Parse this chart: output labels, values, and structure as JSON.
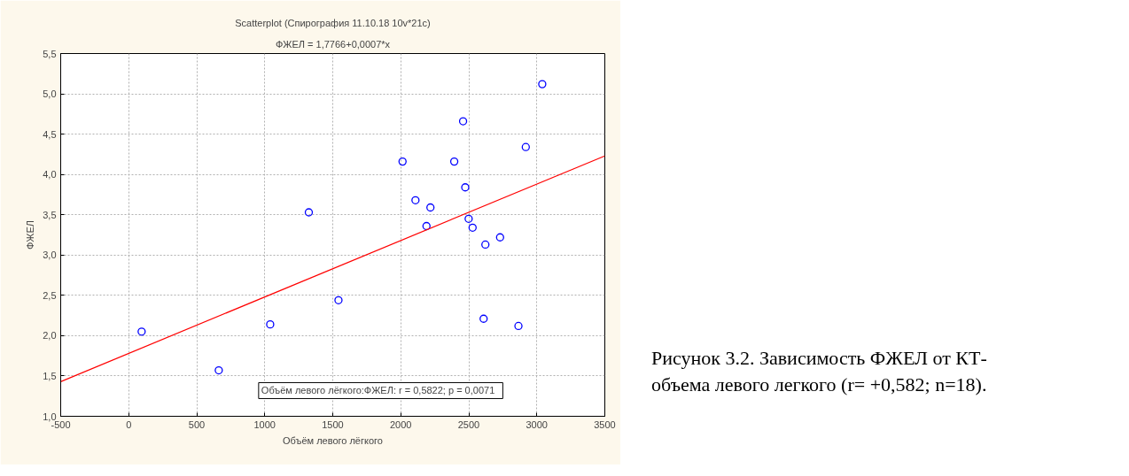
{
  "chart_data": {
    "type": "scatter",
    "title": "Scatterplot (Спирография 11.10.18 10v*21c)",
    "subtitle": "ФЖЕЛ = 1,7766+0,0007*x",
    "xlabel": "Объём левого лёгкого",
    "ylabel": "ФЖЕЛ",
    "x": [
      95,
      662,
      1040,
      1324,
      1542,
      2013,
      2108,
      2218,
      2189,
      2393,
      2458,
      2474,
      2499,
      2528,
      2622,
      2730,
      2609,
      2865,
      2919,
      3040
    ],
    "series": [
      {
        "color": "#0000ff",
        "marker": "circle",
        "values": [
          2.05,
          1.57,
          2.14,
          3.53,
          2.44,
          4.16,
          3.68,
          3.59,
          3.36,
          4.16,
          4.66,
          3.84,
          3.45,
          3.34,
          3.13,
          3.22,
          2.21,
          2.12,
          4.34,
          5.12
        ]
      },
      {
        "type": "line",
        "color": "#ff0000",
        "x": [
          -500,
          3500
        ],
        "values": [
          1.43,
          4.23
        ]
      }
    ],
    "annotations": [
      "Объём левого лёгкого:ФЖЕЛ:   r = 0,5822; p = 0,0071",
      "Рисунок 3.2.  Зависимость ФЖЕЛ от КТ-объема левого легкого (r= +0,582; n=18)."
    ],
    "xlim": [
      -500,
      3500
    ],
    "ylim": [
      1.0,
      5.5
    ],
    "xticks": [
      -500,
      0,
      500,
      1000,
      1500,
      2000,
      2500,
      3000,
      3500
    ],
    "yticks": [
      {
        "value": 1.0,
        "label": "1,0"
      },
      {
        "value": 1.5,
        "label": "1,5"
      },
      {
        "value": 2.0,
        "label": "2,0"
      },
      {
        "value": 2.5,
        "label": "2,5"
      },
      {
        "value": 3.0,
        "label": "3,0"
      },
      {
        "value": 3.5,
        "label": "3,5"
      },
      {
        "value": 4.0,
        "label": "4,0"
      },
      {
        "value": 4.5,
        "label": "4,5"
      },
      {
        "value": 5.0,
        "label": "5,0"
      },
      {
        "value": 5.5,
        "label": "5,5"
      }
    ],
    "grid": true
  }
}
